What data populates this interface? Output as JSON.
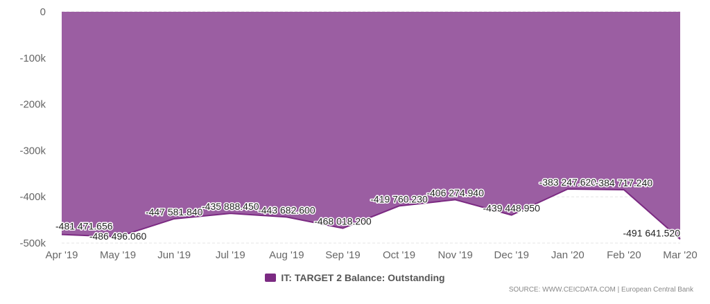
{
  "chart_data": {
    "type": "area",
    "categories": [
      "Apr '19",
      "May '19",
      "Jun '19",
      "Jul '19",
      "Aug '19",
      "Sep '19",
      "Oct '19",
      "Nov '19",
      "Dec '19",
      "Jan '20",
      "Feb '20",
      "Mar '20"
    ],
    "series": [
      {
        "name": "IT: TARGET 2 Balance: Outstanding",
        "values": [
          -481471.656,
          -486496.06,
          -447581.84,
          -435888.45,
          -443682.6,
          -468018.2,
          -419760.23,
          -406274.94,
          -439448.95,
          -383247.62,
          -384717.24,
          -491641.52
        ],
        "labels": [
          "-481 471.656",
          "-486 496.060",
          "-447 581.840",
          "-435 888.450",
          "-443 682.600",
          "-468 018.200",
          "-419 760.230",
          "-406 274.940",
          "-439 448.950",
          "-383 247.620",
          "-384 717.240",
          "-491 641.520"
        ]
      }
    ],
    "yticks": [
      {
        "value": 0,
        "label": "0"
      },
      {
        "value": -100000,
        "label": "-100k"
      },
      {
        "value": -200000,
        "label": "-200k"
      },
      {
        "value": -300000,
        "label": "-300k"
      },
      {
        "value": -400000,
        "label": "-400k"
      },
      {
        "value": -500000,
        "label": "-500k"
      }
    ],
    "ylim": [
      -500000,
      0
    ],
    "grid": true,
    "legend": "bottom-center",
    "colors": {
      "fill": "#9b5ea2",
      "line": "#7b2a82",
      "swatch": "#7b2a82"
    }
  },
  "source": "SOURCE: WWW.CEICDATA.COM | European Central Bank"
}
